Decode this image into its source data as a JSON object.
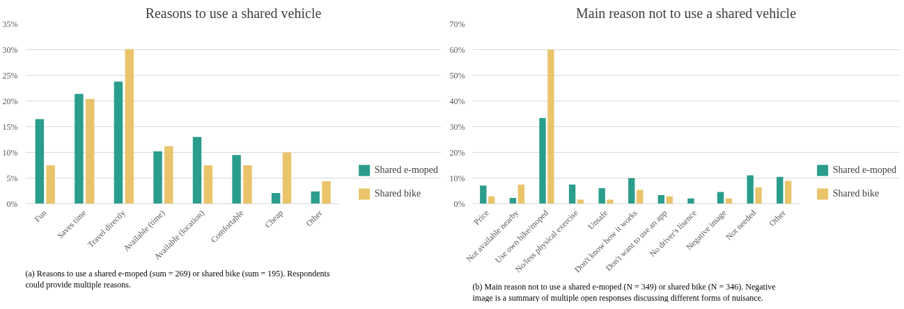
{
  "chart_data": [
    {
      "type": "bar",
      "title": "Reasons to use a shared vehicle",
      "categories": [
        "Fun",
        "Saves time",
        "Travel directly",
        "Available (time)",
        "Available (location)",
        "Comfortable",
        "Cheap",
        "Other"
      ],
      "series": [
        {
          "name": "Shared e-moped",
          "color": "#2a9d8c",
          "values": [
            16.5,
            21.4,
            23.8,
            10.2,
            13.0,
            9.5,
            2.1,
            2.4
          ]
        },
        {
          "name": "Shared bike",
          "color": "#e9c46a",
          "values": [
            7.5,
            20.4,
            30.1,
            11.2,
            7.5,
            7.5,
            10.0,
            4.4
          ]
        }
      ],
      "ylim": [
        0,
        35
      ],
      "yticks": [
        {
          "value": 0,
          "label": "0%"
        },
        {
          "value": 5,
          "label": "5%"
        },
        {
          "value": 10,
          "label": "10%"
        },
        {
          "value": 15,
          "label": "15%"
        },
        {
          "value": 20,
          "label": "20%"
        },
        {
          "value": 25,
          "label": "25%"
        },
        {
          "value": 30,
          "label": "30%"
        },
        {
          "value": 35,
          "label": "35%"
        }
      ],
      "grid": "y",
      "legend": "bottom right",
      "annotations": [
        "(a) Reasons to use a shared e-moped (sum = 269) or shared bike (sum = 195). Respondents could provide multiple reasons."
      ]
    },
    {
      "type": "bar",
      "title": "Main reason not to use a shared vehicle",
      "categories": [
        "Price",
        "Not available nearby",
        "Use own bike/moped",
        "No/less physical exercise",
        "Unsafe",
        "Don't know how it works",
        "Don't want to use an app",
        "No driver's lisence",
        "Negative image",
        "Not needed",
        "Other"
      ],
      "series": [
        {
          "name": "Shared e-moped",
          "color": "#2a9d8c",
          "values": [
            7.1,
            2.3,
            33.4,
            7.5,
            6.1,
            10.0,
            3.4,
            2.1,
            4.6,
            11.1,
            10.5
          ]
        },
        {
          "name": "Shared bike",
          "color": "#e9c46a",
          "values": [
            2.9,
            7.5,
            60.0,
            1.6,
            1.6,
            5.4,
            2.9,
            0,
            2.1,
            6.4,
            8.9
          ]
        }
      ],
      "ylim": [
        0,
        70
      ],
      "yticks": [
        {
          "value": 0,
          "label": "0%"
        },
        {
          "value": 10,
          "label": "10%"
        },
        {
          "value": 20,
          "label": "20%"
        },
        {
          "value": 30,
          "label": "30%"
        },
        {
          "value": 40,
          "label": "40%"
        },
        {
          "value": 50,
          "label": "50%"
        },
        {
          "value": 60,
          "label": "60%"
        },
        {
          "value": 70,
          "label": "70%"
        }
      ],
      "grid": "y",
      "legend": "bottom right",
      "annotations": [
        "(b) Main reason not to use a shared e-moped (N = 349) or shared bike (N = 346). Negative image is a summary of multiple open responses discussing different forms of nuisance."
      ]
    }
  ]
}
